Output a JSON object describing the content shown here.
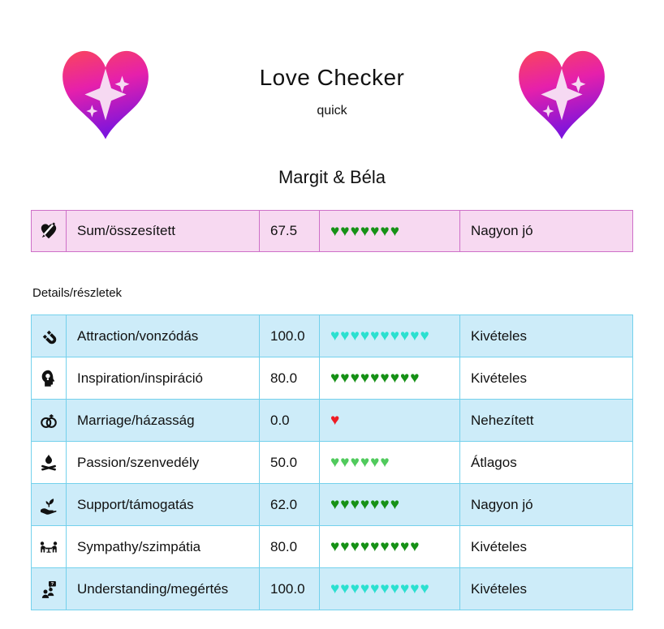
{
  "header": {
    "title": "Love Checker",
    "subtitle": "quick",
    "names": "Margit & Béla",
    "heart_icon": "sparkling-heart-icon",
    "heart_gradient": [
      "#fa455c",
      "#e620ab",
      "#7e14dc"
    ],
    "sparkle_color": "#f6d9f2"
  },
  "summary": {
    "icon": "heart-pencil-icon",
    "label": "Sum/összesített",
    "score": "67.5",
    "hearts": {
      "count": 7,
      "color": "#169116"
    },
    "verdict": "Nagyon jó",
    "bg_color": "#f7d9f1",
    "border_color": "#ce70c8"
  },
  "details": {
    "heading": "Details/részletek",
    "border_color": "#74d1ec",
    "row_alt_color": "#cdecf9",
    "rows": [
      {
        "icon": "magnet-icon",
        "label": "Attraction/vonzódás",
        "score": "100.0",
        "hearts": {
          "count": 10,
          "color": "#2be0d0"
        },
        "verdict": "Kivételes"
      },
      {
        "icon": "head-lightbulb-icon",
        "label": "Inspiration/inspiráció",
        "score": "80.0",
        "hearts": {
          "count": 9,
          "color": "#169116"
        },
        "verdict": "Kivételes"
      },
      {
        "icon": "wedding-rings-icon",
        "label": "Marriage/házasság",
        "score": "0.0",
        "hearts": {
          "count": 1,
          "color": "#ee1c25"
        },
        "verdict": "Nehezített"
      },
      {
        "icon": "campfire-icon",
        "label": "Passion/szenvedély",
        "score": "50.0",
        "hearts": {
          "count": 6,
          "color": "#50ca5c"
        },
        "verdict": "Átlagos"
      },
      {
        "icon": "hand-plant-icon",
        "label": "Support/támogatás",
        "score": "62.0",
        "hearts": {
          "count": 7,
          "color": "#169116"
        },
        "verdict": "Nagyon jó"
      },
      {
        "icon": "meeting-table-icon",
        "label": "Sympathy/szimpátia",
        "score": "80.0",
        "hearts": {
          "count": 9,
          "color": "#169116"
        },
        "verdict": "Kivételes"
      },
      {
        "icon": "people-question-icon",
        "label": "Understanding/megértés",
        "score": "100.0",
        "hearts": {
          "count": 10,
          "color": "#2be0d0"
        },
        "verdict": "Kivételes"
      }
    ]
  }
}
